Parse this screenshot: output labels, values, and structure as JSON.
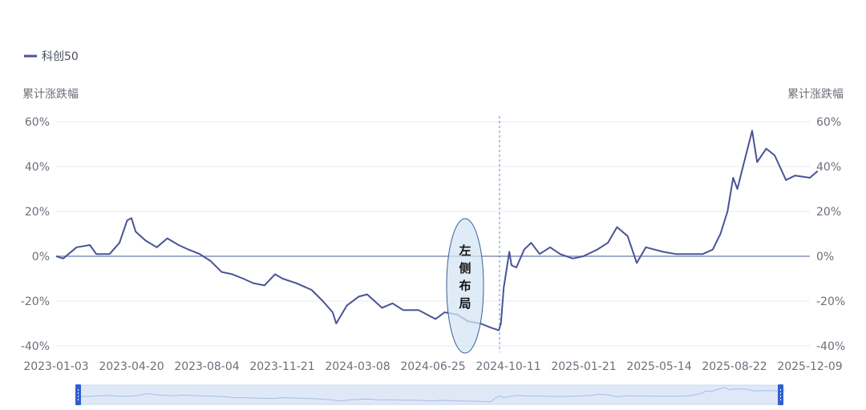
{
  "chart_data": {
    "type": "line",
    "legend": {
      "entries": [
        "科创50"
      ],
      "position": "top-left"
    },
    "y_axis_title_left": "累计涨跌幅",
    "y_axis_title_right": "累计涨跌幅",
    "y_ticks": [
      "60%",
      "40%",
      "20%",
      "0%",
      "-20%",
      "-40%"
    ],
    "y_tick_values": [
      60,
      40,
      20,
      0,
      -20,
      -40
    ],
    "ylim": [
      -40,
      60
    ],
    "x_ticks": [
      "2023-01-03",
      "2023-04-20",
      "2023-08-04",
      "2023-11-21",
      "2024-03-08",
      "2024-06-25",
      "2024-10-11",
      "2025-01-21",
      "2025-05-14",
      "2025-08-22",
      "2025-12-09"
    ],
    "grid": true,
    "vertical_marker_date": "2024-09-24",
    "annotation": {
      "text": "左侧布局",
      "chars": [
        "左",
        "侧",
        "布",
        "局"
      ]
    },
    "series": [
      {
        "name": "科创50",
        "color": "#4a5396",
        "points": [
          [
            "2023-01-03",
            0
          ],
          [
            "2023-01-13",
            -1
          ],
          [
            "2023-02-01",
            4
          ],
          [
            "2023-02-20",
            5
          ],
          [
            "2023-03-01",
            1
          ],
          [
            "2023-03-20",
            1
          ],
          [
            "2023-04-03",
            6
          ],
          [
            "2023-04-14",
            16
          ],
          [
            "2023-04-20",
            17
          ],
          [
            "2023-04-26",
            11
          ],
          [
            "2023-05-10",
            7
          ],
          [
            "2023-05-26",
            4
          ],
          [
            "2023-06-10",
            8
          ],
          [
            "2023-06-26",
            5
          ],
          [
            "2023-07-10",
            3
          ],
          [
            "2023-07-26",
            1
          ],
          [
            "2023-08-10",
            -2
          ],
          [
            "2023-08-26",
            -7
          ],
          [
            "2023-09-10",
            -8
          ],
          [
            "2023-09-26",
            -10
          ],
          [
            "2023-10-10",
            -12
          ],
          [
            "2023-10-26",
            -13
          ],
          [
            "2023-11-10",
            -8
          ],
          [
            "2023-11-21",
            -10
          ],
          [
            "2023-12-10",
            -12
          ],
          [
            "2024-01-01",
            -15
          ],
          [
            "2024-01-17",
            -20
          ],
          [
            "2024-01-31",
            -25
          ],
          [
            "2024-02-05",
            -30
          ],
          [
            "2024-02-20",
            -22
          ],
          [
            "2024-03-08",
            -18
          ],
          [
            "2024-03-20",
            -17
          ],
          [
            "2024-04-10",
            -23
          ],
          [
            "2024-04-25",
            -21
          ],
          [
            "2024-05-10",
            -24
          ],
          [
            "2024-06-01",
            -24
          ],
          [
            "2024-06-25",
            -28
          ],
          [
            "2024-07-08",
            -25
          ],
          [
            "2024-07-26",
            -26
          ],
          [
            "2024-08-10",
            -29
          ],
          [
            "2024-08-28",
            -30
          ],
          [
            "2024-09-13",
            -32
          ],
          [
            "2024-09-23",
            -33
          ],
          [
            "2024-09-26",
            -30
          ],
          [
            "2024-09-30",
            -14
          ],
          [
            "2024-10-08",
            2
          ],
          [
            "2024-10-11",
            -4
          ],
          [
            "2024-10-18",
            -5
          ],
          [
            "2024-10-29",
            3
          ],
          [
            "2024-11-08",
            6
          ],
          [
            "2024-11-20",
            1
          ],
          [
            "2024-12-05",
            4
          ],
          [
            "2024-12-19",
            1
          ],
          [
            "2025-01-06",
            -1
          ],
          [
            "2025-01-21",
            0
          ],
          [
            "2025-02-10",
            3
          ],
          [
            "2025-02-25",
            6
          ],
          [
            "2025-03-10",
            13
          ],
          [
            "2025-03-25",
            9
          ],
          [
            "2025-04-07",
            -3
          ],
          [
            "2025-04-20",
            4
          ],
          [
            "2025-05-14",
            2
          ],
          [
            "2025-06-01",
            1
          ],
          [
            "2025-06-20",
            1
          ],
          [
            "2025-07-10",
            1
          ],
          [
            "2025-07-24",
            3
          ],
          [
            "2025-08-04",
            10
          ],
          [
            "2025-08-14",
            20
          ],
          [
            "2025-08-22",
            35
          ],
          [
            "2025-08-28",
            30
          ],
          [
            "2025-09-05",
            40
          ],
          [
            "2025-09-18",
            56
          ],
          [
            "2025-09-25",
            42
          ],
          [
            "2025-10-08",
            48
          ],
          [
            "2025-10-20",
            45
          ],
          [
            "2025-11-05",
            34
          ],
          [
            "2025-11-18",
            36
          ],
          [
            "2025-12-09",
            35
          ],
          [
            "2025-12-20",
            38
          ]
        ]
      }
    ]
  },
  "colors": {
    "line": "#4a5396",
    "grid": "#e6e8f0",
    "zero_line": "#8591b8",
    "annotation_fill": "#d6e4f5",
    "annotation_stroke": "#3a5f93",
    "slider_fill": "#dfe8f7",
    "slider_handle": "#2f5fd0"
  }
}
